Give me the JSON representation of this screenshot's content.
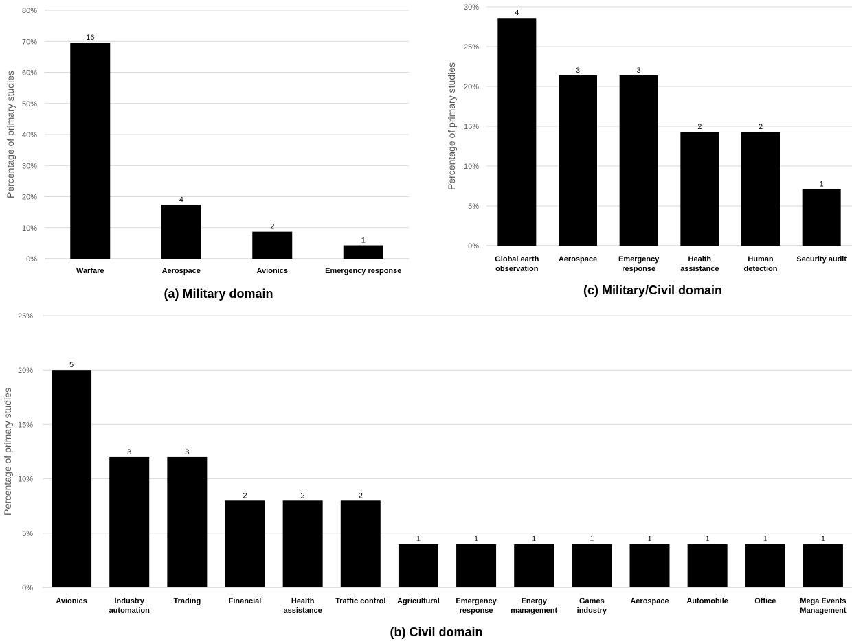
{
  "chart_data": [
    {
      "id": "a",
      "type": "bar",
      "title": "(a) Military domain",
      "ylabel": "Percentage of primary studies",
      "ylim": [
        0,
        80
      ],
      "yticks": [
        0,
        10,
        20,
        30,
        40,
        50,
        60,
        70,
        80
      ],
      "ytick_labels": [
        "0%",
        "10%",
        "20%",
        "30%",
        "40%",
        "50%",
        "60%",
        "70%",
        "80%"
      ],
      "grid": true,
      "categories": [
        [
          "Warfare"
        ],
        [
          "Aerospace"
        ],
        [
          "Avionics"
        ],
        [
          "Emergency response"
        ]
      ],
      "values": [
        69.6,
        17.4,
        8.7,
        4.3
      ],
      "data_labels": [
        "16",
        "4",
        "2",
        "1"
      ]
    },
    {
      "id": "c",
      "type": "bar",
      "title": "(c) Military/Civil domain",
      "ylabel": "Percentage of primary studies",
      "ylim": [
        0,
        30
      ],
      "yticks": [
        0,
        5,
        10,
        15,
        20,
        25,
        30
      ],
      "ytick_labels": [
        "0%",
        "5%",
        "10%",
        "15%",
        "20%",
        "25%",
        "30%"
      ],
      "grid": true,
      "categories": [
        [
          "Global earth",
          "observation"
        ],
        [
          "Aerospace"
        ],
        [
          "Emergency",
          "response"
        ],
        [
          "Health",
          "assistance"
        ],
        [
          "Human",
          "detection"
        ],
        [
          "Security audit"
        ]
      ],
      "values": [
        28.6,
        21.4,
        21.4,
        14.3,
        14.3,
        7.1
      ],
      "data_labels": [
        "4",
        "3",
        "3",
        "2",
        "2",
        "1"
      ]
    },
    {
      "id": "b",
      "type": "bar",
      "title": "(b) Civil domain",
      "ylabel": "Percentage of primary studies",
      "ylim": [
        0,
        25
      ],
      "yticks": [
        0,
        5,
        10,
        15,
        20,
        25
      ],
      "ytick_labels": [
        "0%",
        "5%",
        "10%",
        "15%",
        "20%",
        "25%"
      ],
      "grid": true,
      "categories": [
        [
          "Avionics"
        ],
        [
          "Industry",
          "automation"
        ],
        [
          "Trading"
        ],
        [
          "Financial"
        ],
        [
          "Health",
          "assistance"
        ],
        [
          "Traffic control"
        ],
        [
          "Agricultural"
        ],
        [
          "Emergency",
          "response"
        ],
        [
          "Energy",
          "management"
        ],
        [
          "Games",
          "industry"
        ],
        [
          "Aerospace"
        ],
        [
          "Automobile"
        ],
        [
          "Office"
        ],
        [
          "Mega Events",
          "Management"
        ]
      ],
      "values": [
        20,
        12,
        12,
        8,
        8,
        8,
        4,
        4,
        4,
        4,
        4,
        4,
        4,
        4
      ],
      "data_labels": [
        "5",
        "3",
        "3",
        "2",
        "2",
        "2",
        "1",
        "1",
        "1",
        "1",
        "1",
        "1",
        "1",
        "1"
      ]
    }
  ]
}
